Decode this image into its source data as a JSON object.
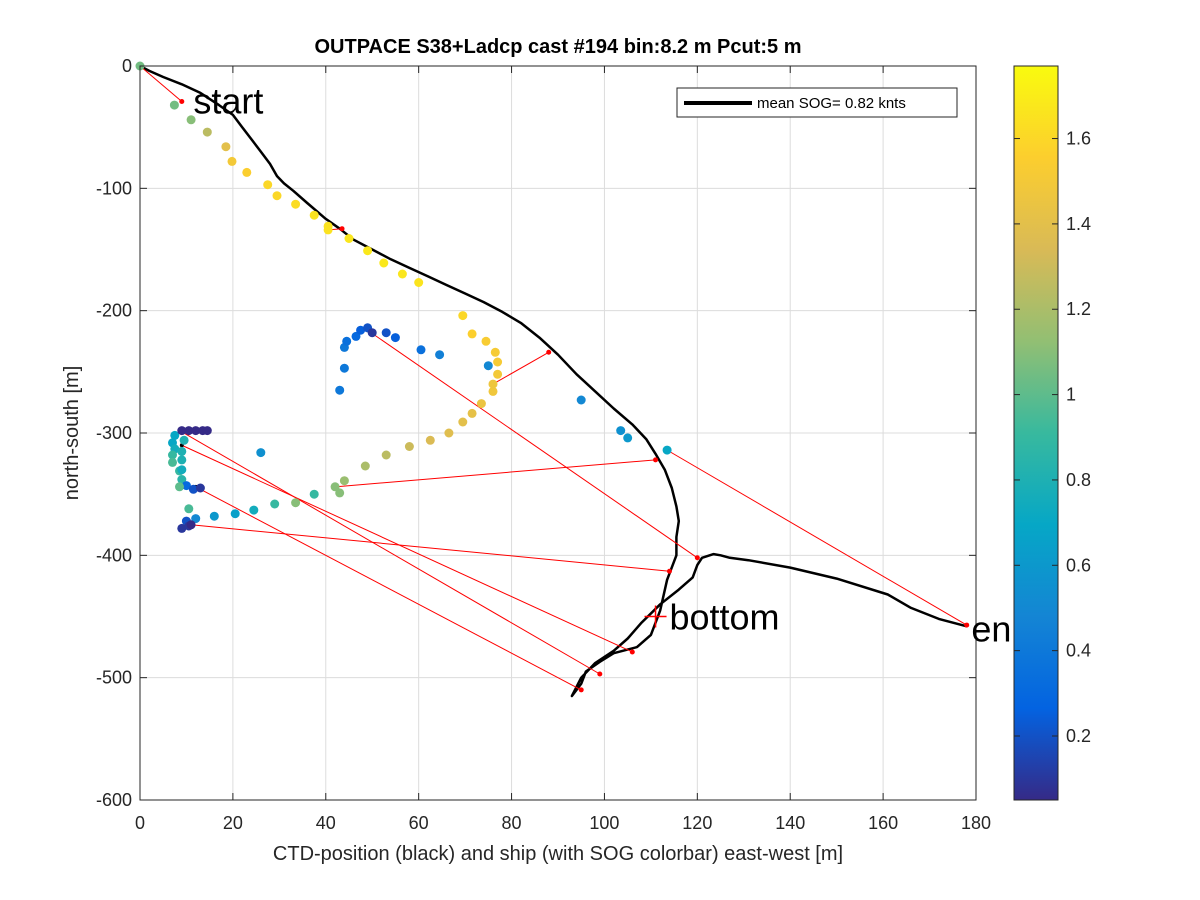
{
  "chart_data": {
    "type": "scatter",
    "title": "OUTPACE S38+Ladcp cast #194 bin:8.2 m  Pcut:5 m",
    "xlabel": "CTD-position (black) and ship (with SOG colorbar) east-west [m]",
    "ylabel": "north-south [m]",
    "xlim": [
      0,
      180
    ],
    "ylim": [
      -600,
      0
    ],
    "xticks": [
      0,
      20,
      40,
      60,
      80,
      100,
      120,
      140,
      160,
      180
    ],
    "yticks": [
      0,
      -100,
      -200,
      -300,
      -400,
      -500,
      -600
    ],
    "grid": true,
    "legend": {
      "placement": "top-right",
      "entries": [
        "mean SOG=  0.82 knts"
      ]
    },
    "colorbar": {
      "range": [
        0.05,
        1.77
      ],
      "ticks": [
        0.2,
        0.4,
        0.6,
        0.8,
        1,
        1.2,
        1.4,
        1.6
      ],
      "tick_labels": [
        "0.2",
        "0.4",
        "0.6",
        "0.8",
        "1",
        "1.2",
        "1.4",
        "1.6"
      ],
      "colormap": [
        "#352a87",
        "#0363e1",
        "#1485d4",
        "#06a7c6",
        "#38b99e",
        "#92bf73",
        "#d9ba56",
        "#fcce2e",
        "#f9fb0e"
      ]
    },
    "annotations": [
      {
        "text": "start",
        "x": 11.5,
        "y": -28
      },
      {
        "text": "bottom",
        "x": 114,
        "y": -450
      },
      {
        "text": "en",
        "x": 179,
        "y": -460
      }
    ],
    "bottom_marker": {
      "x": 111,
      "y": -450,
      "color": "#ff0000"
    },
    "series": [
      {
        "name": "CTD-position",
        "type": "line",
        "color": "#000000",
        "points": [
          [
            0,
            0
          ],
          [
            2,
            -4
          ],
          [
            5,
            -9
          ],
          [
            9,
            -15
          ],
          [
            13,
            -22
          ],
          [
            17,
            -32
          ],
          [
            20,
            -40
          ],
          [
            22,
            -50
          ],
          [
            24,
            -60
          ],
          [
            26,
            -70
          ],
          [
            28,
            -80
          ],
          [
            29.5,
            -90
          ],
          [
            31,
            -96
          ],
          [
            33,
            -102
          ],
          [
            36,
            -112
          ],
          [
            40,
            -125
          ],
          [
            43,
            -133
          ],
          [
            46,
            -142
          ],
          [
            50,
            -150
          ],
          [
            54,
            -158
          ],
          [
            58,
            -165
          ],
          [
            62,
            -172
          ],
          [
            66,
            -179
          ],
          [
            70,
            -186
          ],
          [
            74,
            -193
          ],
          [
            78,
            -201
          ],
          [
            82,
            -210
          ],
          [
            86,
            -222
          ],
          [
            90,
            -236
          ],
          [
            94,
            -252
          ],
          [
            98,
            -266
          ],
          [
            102,
            -280
          ],
          [
            106,
            -293
          ],
          [
            109,
            -305
          ],
          [
            111,
            -317
          ],
          [
            113,
            -330
          ],
          [
            114.5,
            -345
          ],
          [
            115.5,
            -360
          ],
          [
            116,
            -372
          ],
          [
            115.5,
            -385
          ],
          [
            115.5,
            -400
          ],
          [
            113.5,
            -420
          ],
          [
            112,
            -445
          ],
          [
            110,
            -465
          ],
          [
            107,
            -475
          ],
          [
            102,
            -480
          ],
          [
            99,
            -487
          ],
          [
            96,
            -495
          ],
          [
            95,
            -505
          ],
          [
            93,
            -515
          ],
          [
            95,
            -500
          ],
          [
            98,
            -488
          ],
          [
            102,
            -478
          ],
          [
            105,
            -468
          ],
          [
            108,
            -455
          ],
          [
            112,
            -440
          ],
          [
            116,
            -428
          ],
          [
            119,
            -418
          ],
          [
            120,
            -408
          ],
          [
            121,
            -402
          ],
          [
            123.5,
            -399
          ],
          [
            125,
            -400
          ],
          [
            127,
            -402
          ],
          [
            131,
            -404
          ],
          [
            140,
            -410
          ],
          [
            150,
            -419
          ],
          [
            161,
            -432
          ],
          [
            166,
            -443
          ],
          [
            172,
            -452
          ],
          [
            178,
            -458
          ]
        ]
      },
      {
        "name": "ship",
        "type": "scatter",
        "points": [
          [
            0,
            0,
            1.05
          ],
          [
            7.4,
            -32,
            1.05
          ],
          [
            11,
            -44,
            1.1
          ],
          [
            14.5,
            -54,
            1.25
          ],
          [
            18.5,
            -66,
            1.4
          ],
          [
            19.8,
            -78,
            1.5
          ],
          [
            23,
            -87,
            1.55
          ],
          [
            27.5,
            -97,
            1.6
          ],
          [
            29.5,
            -106,
            1.6
          ],
          [
            33.5,
            -113,
            1.62
          ],
          [
            37.5,
            -122,
            1.65
          ],
          [
            40.5,
            -131,
            1.65
          ],
          [
            45,
            -141,
            1.67
          ],
          [
            49,
            -151,
            1.68
          ],
          [
            52.5,
            -161,
            1.68
          ],
          [
            56.5,
            -170,
            1.67
          ],
          [
            60,
            -177,
            1.66
          ],
          [
            69.5,
            -204,
            1.6
          ],
          [
            71.5,
            -219,
            1.56
          ],
          [
            74.5,
            -225,
            1.53
          ],
          [
            76.5,
            -234,
            1.52
          ],
          [
            77,
            -242,
            1.52
          ],
          [
            77,
            -252,
            1.5
          ],
          [
            76,
            -266,
            1.48
          ],
          [
            73.5,
            -276,
            1.45
          ],
          [
            71.5,
            -284,
            1.42
          ],
          [
            69.5,
            -291,
            1.4
          ],
          [
            66.5,
            -300,
            1.38
          ],
          [
            62.5,
            -306,
            1.35
          ],
          [
            58,
            -311,
            1.3
          ],
          [
            53,
            -318,
            1.25
          ],
          [
            48.5,
            -327,
            1.2
          ],
          [
            44,
            -339,
            1.15
          ],
          [
            43,
            -349,
            1.1
          ],
          [
            42,
            -344,
            1.1
          ],
          [
            76,
            -260,
            1.47
          ],
          [
            40.5,
            -134,
            1.65
          ],
          [
            44,
            -230,
            0.4
          ],
          [
            44,
            -247,
            0.4
          ],
          [
            43,
            -265,
            0.4
          ],
          [
            44.5,
            -225,
            0.35
          ],
          [
            46.5,
            -221,
            0.3
          ],
          [
            47.5,
            -216,
            0.25
          ],
          [
            49,
            -214,
            0.2
          ],
          [
            50,
            -218,
            0.1
          ],
          [
            53,
            -218,
            0.2
          ],
          [
            55,
            -222,
            0.25
          ],
          [
            60.5,
            -232,
            0.35
          ],
          [
            64.5,
            -236,
            0.45
          ],
          [
            75,
            -245,
            0.5
          ],
          [
            95,
            -273,
            0.5
          ],
          [
            103.5,
            -298,
            0.55
          ],
          [
            105,
            -304,
            0.6
          ],
          [
            113.5,
            -314,
            0.7
          ],
          [
            7.5,
            -302,
            0.7
          ],
          [
            9,
            -298,
            0.05
          ],
          [
            10.5,
            -298,
            0.05
          ],
          [
            12,
            -298,
            0.05
          ],
          [
            13.5,
            -298,
            0.05
          ],
          [
            14.5,
            -298,
            0.05
          ],
          [
            7,
            -308,
            0.7
          ],
          [
            7.5,
            -313,
            0.75
          ],
          [
            7,
            -318,
            0.9
          ],
          [
            7,
            -324,
            0.95
          ],
          [
            8.5,
            -331,
            0.9
          ],
          [
            9,
            -338,
            0.85
          ],
          [
            10,
            -343,
            0.3
          ],
          [
            11.5,
            -346,
            0.2
          ],
          [
            13,
            -345,
            0.1
          ],
          [
            8.5,
            -344,
            1.0
          ],
          [
            10.5,
            -362,
            0.95
          ],
          [
            9.5,
            -306,
            0.8
          ],
          [
            9,
            -315,
            0.8
          ],
          [
            9,
            -322,
            0.8
          ],
          [
            9,
            -330,
            0.75
          ],
          [
            26,
            -316,
            0.55
          ],
          [
            29,
            -358,
            0.9
          ],
          [
            24.5,
            -363,
            0.75
          ],
          [
            20.5,
            -366,
            0.65
          ],
          [
            16,
            -368,
            0.6
          ],
          [
            12,
            -370,
            0.5
          ],
          [
            10,
            -372,
            0.2
          ],
          [
            9,
            -378,
            0.1
          ],
          [
            10.5,
            -376,
            0.1
          ],
          [
            33.5,
            -357,
            1.1
          ],
          [
            37.5,
            -350,
            0.9
          ],
          [
            11,
            -375,
            0.05
          ]
        ]
      },
      {
        "name": "connectors",
        "type": "segments",
        "color": "#ff0000",
        "segments": [
          [
            [
              0,
              0
            ],
            [
              9,
              -29
            ]
          ],
          [
            [
              40.5,
              -134
            ],
            [
              43.5,
              -133
            ]
          ],
          [
            [
              76,
              -260
            ],
            [
              88,
              -234
            ]
          ],
          [
            [
              49,
              -216
            ],
            [
              120,
              -402
            ]
          ],
          [
            [
              42,
              -344
            ],
            [
              111,
              -322
            ]
          ],
          [
            [
              113.5,
              -314
            ],
            [
              178,
              -457
            ]
          ],
          [
            [
              9,
              -299
            ],
            [
              99,
              -497
            ]
          ],
          [
            [
              9,
              -310
            ],
            [
              106,
              -479
            ]
          ],
          [
            [
              12,
              -344
            ],
            [
              95,
              -510
            ]
          ],
          [
            [
              11,
              -375
            ],
            [
              114,
              -413
            ]
          ]
        ]
      }
    ]
  }
}
